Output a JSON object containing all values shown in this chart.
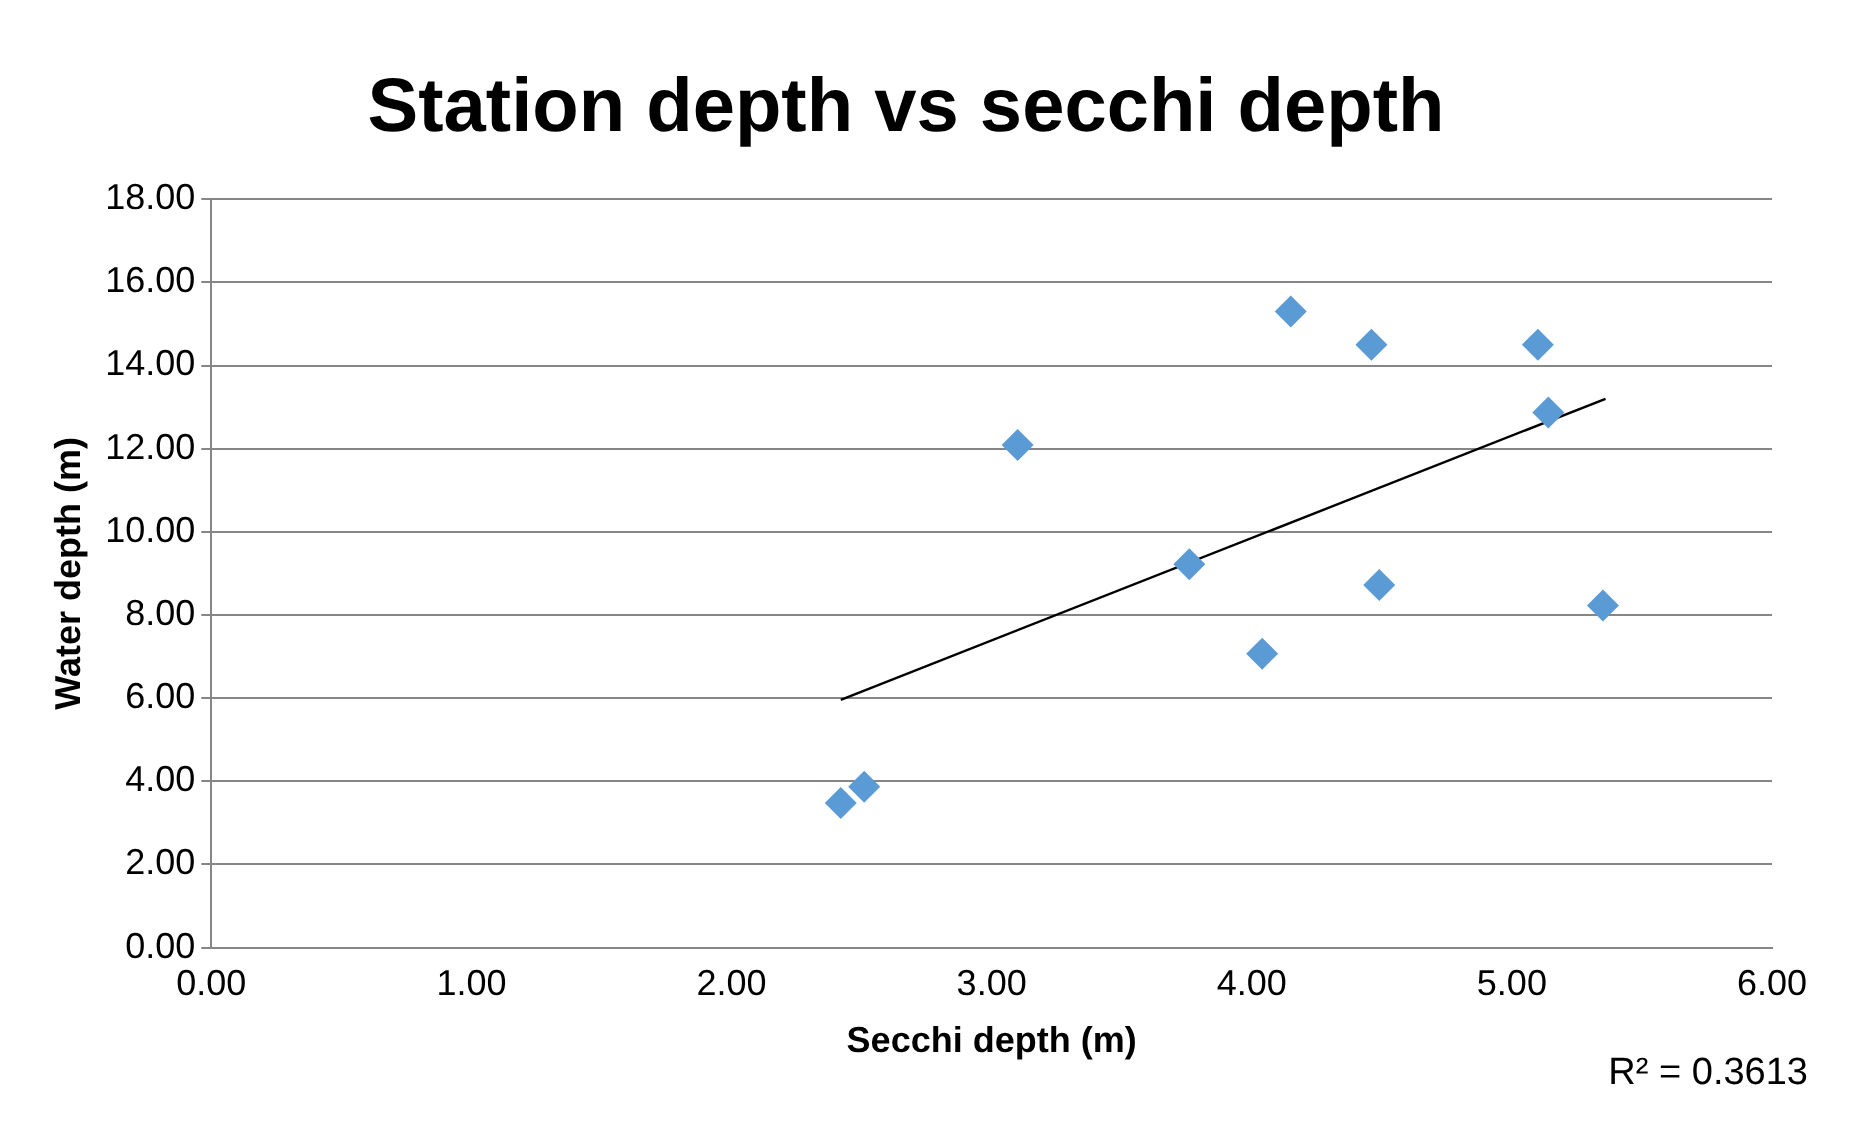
{
  "chart_data": {
    "type": "scatter",
    "title": "Station depth vs secchi depth",
    "xlabel": "Secchi depth (m)",
    "ylabel": "Water depth (m)",
    "annotations": [
      "R² = 0.3613"
    ],
    "marker": "diamond",
    "grid": "y",
    "legend": false,
    "xlim": [
      0,
      6
    ],
    "ylim": [
      0,
      18
    ],
    "xticks": [
      {
        "value": 0,
        "label": "0.00"
      },
      {
        "value": 1,
        "label": "1.00"
      },
      {
        "value": 2,
        "label": "2.00"
      },
      {
        "value": 3,
        "label": "3.00"
      },
      {
        "value": 4,
        "label": "4.00"
      },
      {
        "value": 5,
        "label": "5.00"
      },
      {
        "value": 6,
        "label": "6.00"
      }
    ],
    "yticks": [
      {
        "value": 0,
        "label": "0.00"
      },
      {
        "value": 2,
        "label": "2.00"
      },
      {
        "value": 4,
        "label": "4.00"
      },
      {
        "value": 6,
        "label": "6.00"
      },
      {
        "value": 8,
        "label": "8.00"
      },
      {
        "value": 10,
        "label": "10.00"
      },
      {
        "value": 12,
        "label": "12.00"
      },
      {
        "value": 14,
        "label": "14.00"
      },
      {
        "value": 16,
        "label": "16.00"
      },
      {
        "value": 18,
        "label": "18.00"
      }
    ],
    "series": [
      {
        "color": "#5b9bd5",
        "x": [
          2.42,
          2.51,
          3.1,
          3.76,
          4.04,
          4.15,
          4.46,
          4.49,
          5.1,
          5.14,
          5.35
        ],
        "values": [
          3.48,
          3.87,
          12.09,
          9.22,
          7.07,
          15.3,
          14.5,
          8.72,
          14.5,
          12.87,
          8.23
        ]
      },
      {
        "type": "line",
        "marker": "none",
        "color": "#000000",
        "x": [
          2.42,
          5.36
        ],
        "values": [
          5.96,
          13.2
        ]
      }
    ]
  }
}
